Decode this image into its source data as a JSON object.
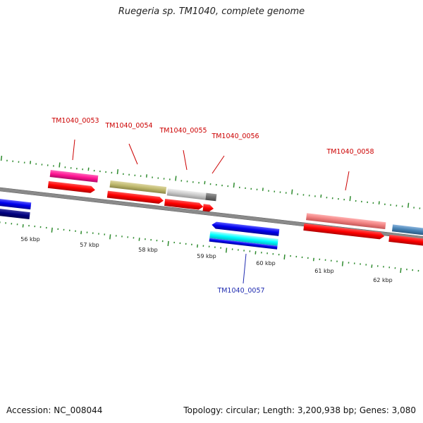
{
  "header": {
    "title": "Ruegeria sp. TM1040, complete genome"
  },
  "footer": {
    "accession": "Accession: NC_008044",
    "stats": "Topology: circular; Length: 3,200,938 bp; Genes: 3,080"
  },
  "scale": {
    "labels": [
      "56 kbp",
      "57 kbp",
      "58 kbp",
      "59 kbp",
      "60 kbp",
      "61 kbp",
      "62 kbp"
    ]
  },
  "genes": {
    "g0053": "TM1040_0053",
    "g0054": "TM1040_0054",
    "g0055": "TM1040_0055",
    "g0056": "TM1040_0056",
    "g0057": "TM1040_0057",
    "g0058": "TM1040_0058"
  },
  "colors": {
    "backbone": "#8a8a8a",
    "cds": "#ff0000",
    "reverse_cds": "#0000ee",
    "tick": "#2e8b2e",
    "label_forward": "#cc0000",
    "label_reverse": "#1f2bb0"
  }
}
